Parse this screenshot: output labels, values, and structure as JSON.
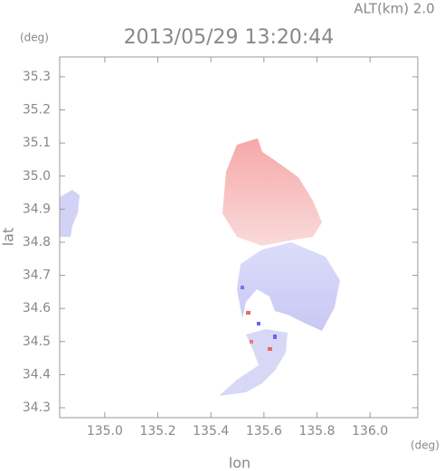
{
  "chart_data": {
    "type": "map",
    "title": "2013/05/29 13:20:44",
    "annotation": "ALT(km) 2.0",
    "x_label": "lon",
    "y_label": "lat",
    "x_unit": "(deg)",
    "y_unit": "(deg)",
    "xlim": [
      134.83,
      136.18
    ],
    "xticks": [
      {
        "value": 135,
        "label": "135.0"
      },
      135.2,
      135.4,
      135.6,
      135.8,
      {
        "value": 136,
        "label": "136.0"
      }
    ],
    "ylim": [
      34.27,
      35.36
    ],
    "yticks": [
      34.3,
      34.4,
      34.5,
      34.6,
      34.7,
      34.8,
      34.9,
      {
        "value": 35,
        "label": "35.0"
      },
      35.1,
      35.2,
      35.3
    ],
    "grid": false
  }
}
